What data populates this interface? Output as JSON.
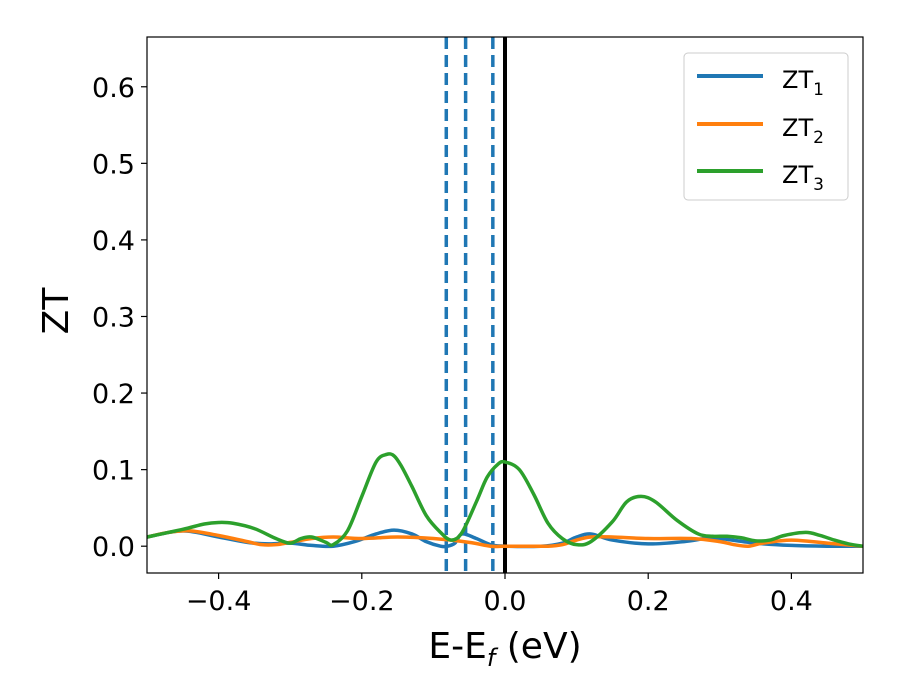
{
  "chart_data": {
    "type": "line",
    "title": "",
    "xlabel": {
      "main": "E-E",
      "sub": "f",
      "unit": " (eV)"
    },
    "ylabel": "ZT",
    "xlim": [
      -0.5,
      0.5
    ],
    "ylim": [
      -0.035,
      0.665
    ],
    "xticks": [
      -0.4,
      -0.2,
      0.0,
      0.2,
      0.4
    ],
    "xtick_labels": [
      "−0.4",
      "−0.2",
      "0.0",
      "0.2",
      "0.4"
    ],
    "yticks": [
      0.0,
      0.1,
      0.2,
      0.3,
      0.4,
      0.5,
      0.6
    ],
    "ytick_labels": [
      "0.0",
      "0.1",
      "0.2",
      "0.3",
      "0.4",
      "0.5",
      "0.6"
    ],
    "grid": false,
    "legend_position": "top-right",
    "vlines": [
      {
        "x": -0.082,
        "style": "dashed",
        "color": "#1f77b4"
      },
      {
        "x": -0.055,
        "style": "dashed",
        "color": "#1f77b4"
      },
      {
        "x": -0.017,
        "style": "dashed",
        "color": "#1f77b4"
      },
      {
        "x": 0.0,
        "style": "solid",
        "color": "#000000"
      }
    ],
    "series": [
      {
        "name": "ZT",
        "sub": "1",
        "color": "#1f77b4",
        "x": [
          -0.5,
          -0.45,
          -0.4,
          -0.36,
          -0.33,
          -0.3,
          -0.27,
          -0.24,
          -0.21,
          -0.18,
          -0.155,
          -0.13,
          -0.11,
          -0.09,
          -0.08,
          -0.07,
          -0.06,
          -0.04,
          -0.02,
          0.0,
          0.05,
          0.08,
          0.1,
          0.12,
          0.15,
          0.2,
          0.25,
          0.28,
          0.3,
          0.35,
          0.4,
          0.45,
          0.5
        ],
        "y": [
          0.012,
          0.02,
          0.012,
          0.005,
          0.003,
          0.004,
          0.001,
          0.0,
          0.006,
          0.016,
          0.021,
          0.016,
          0.006,
          0.0,
          0.0,
          0.004,
          0.016,
          0.01,
          0.002,
          0.0,
          0.0,
          0.004,
          0.012,
          0.016,
          0.008,
          0.003,
          0.006,
          0.01,
          0.01,
          0.004,
          0.001,
          0.0,
          0.0
        ]
      },
      {
        "name": "ZT",
        "sub": "2",
        "color": "#ff7f0e",
        "x": [
          -0.5,
          -0.47,
          -0.44,
          -0.4,
          -0.36,
          -0.34,
          -0.32,
          -0.3,
          -0.27,
          -0.24,
          -0.2,
          -0.15,
          -0.1,
          -0.05,
          -0.02,
          0.0,
          0.03,
          0.06,
          0.08,
          0.1,
          0.12,
          0.15,
          0.2,
          0.26,
          0.3,
          0.32,
          0.34,
          0.36,
          0.4,
          0.45,
          0.5
        ],
        "y": [
          0.012,
          0.018,
          0.02,
          0.014,
          0.006,
          0.002,
          0.002,
          0.005,
          0.01,
          0.012,
          0.01,
          0.012,
          0.01,
          0.005,
          0.0,
          0.0,
          0.0,
          0.0,
          0.002,
          0.008,
          0.012,
          0.012,
          0.01,
          0.01,
          0.006,
          0.002,
          0.0,
          0.004,
          0.008,
          0.004,
          0.0
        ]
      },
      {
        "name": "ZT",
        "sub": "3",
        "color": "#2ca02c",
        "x": [
          -0.5,
          -0.45,
          -0.42,
          -0.4,
          -0.38,
          -0.35,
          -0.32,
          -0.3,
          -0.285,
          -0.27,
          -0.25,
          -0.24,
          -0.22,
          -0.2,
          -0.18,
          -0.165,
          -0.155,
          -0.145,
          -0.13,
          -0.11,
          -0.09,
          -0.075,
          -0.06,
          -0.04,
          -0.025,
          -0.01,
          0.0,
          0.02,
          0.04,
          0.06,
          0.08,
          0.1,
          0.12,
          0.15,
          0.17,
          0.19,
          0.21,
          0.24,
          0.27,
          0.29,
          0.31,
          0.33,
          0.35,
          0.37,
          0.39,
          0.42,
          0.44,
          0.46,
          0.48,
          0.5
        ],
        "y": [
          0.012,
          0.022,
          0.029,
          0.031,
          0.03,
          0.023,
          0.01,
          0.004,
          0.01,
          0.012,
          0.005,
          0.002,
          0.02,
          0.065,
          0.11,
          0.12,
          0.118,
          0.105,
          0.078,
          0.04,
          0.018,
          0.008,
          0.018,
          0.058,
          0.09,
          0.107,
          0.11,
          0.1,
          0.068,
          0.03,
          0.01,
          0.002,
          0.006,
          0.032,
          0.058,
          0.065,
          0.058,
          0.034,
          0.016,
          0.013,
          0.013,
          0.011,
          0.007,
          0.008,
          0.014,
          0.018,
          0.014,
          0.008,
          0.003,
          0.0
        ]
      }
    ]
  }
}
